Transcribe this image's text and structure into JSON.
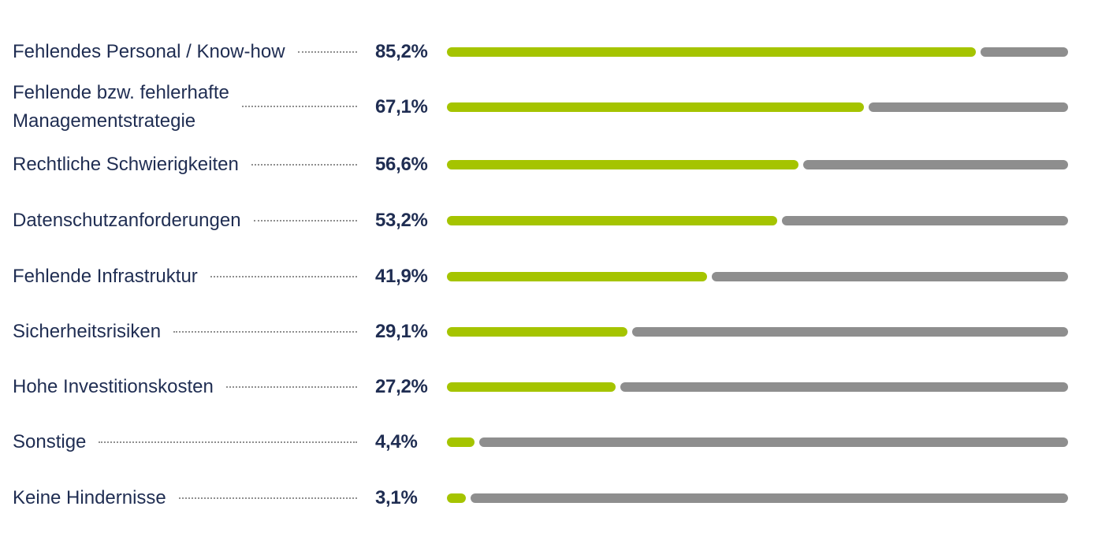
{
  "chart_data": {
    "type": "bar",
    "orientation": "horizontal",
    "categories": [
      [
        "Fehlendes Personal / Know-how"
      ],
      [
        "Fehlende bzw. fehlerhafte",
        "Managementstrategie"
      ],
      [
        "Rechtliche Schwierigkeiten"
      ],
      [
        "Datenschutzanforderungen"
      ],
      [
        "Fehlende Infrastruktur"
      ],
      [
        "Sicherheitsrisiken"
      ],
      [
        "Hohe Investitionskosten"
      ],
      [
        "Sonstige"
      ],
      [
        "Keine Hindernisse"
      ]
    ],
    "values": [
      85.2,
      67.1,
      56.6,
      53.2,
      41.9,
      29.1,
      27.2,
      4.4,
      3.1
    ],
    "value_labels": [
      "85,2%",
      "67,1%",
      "56,6%",
      "53,2%",
      "41,9%",
      "29,1%",
      "27,2%",
      "4,4%",
      "3,1%"
    ],
    "xlim": [
      0,
      100
    ],
    "grid": false,
    "legend": "none",
    "colors": {
      "value_bar": "#a5c400",
      "remainder_bar": "#8e8e8e",
      "text": "#1f2d52",
      "leader": "#8f8f8f"
    }
  }
}
